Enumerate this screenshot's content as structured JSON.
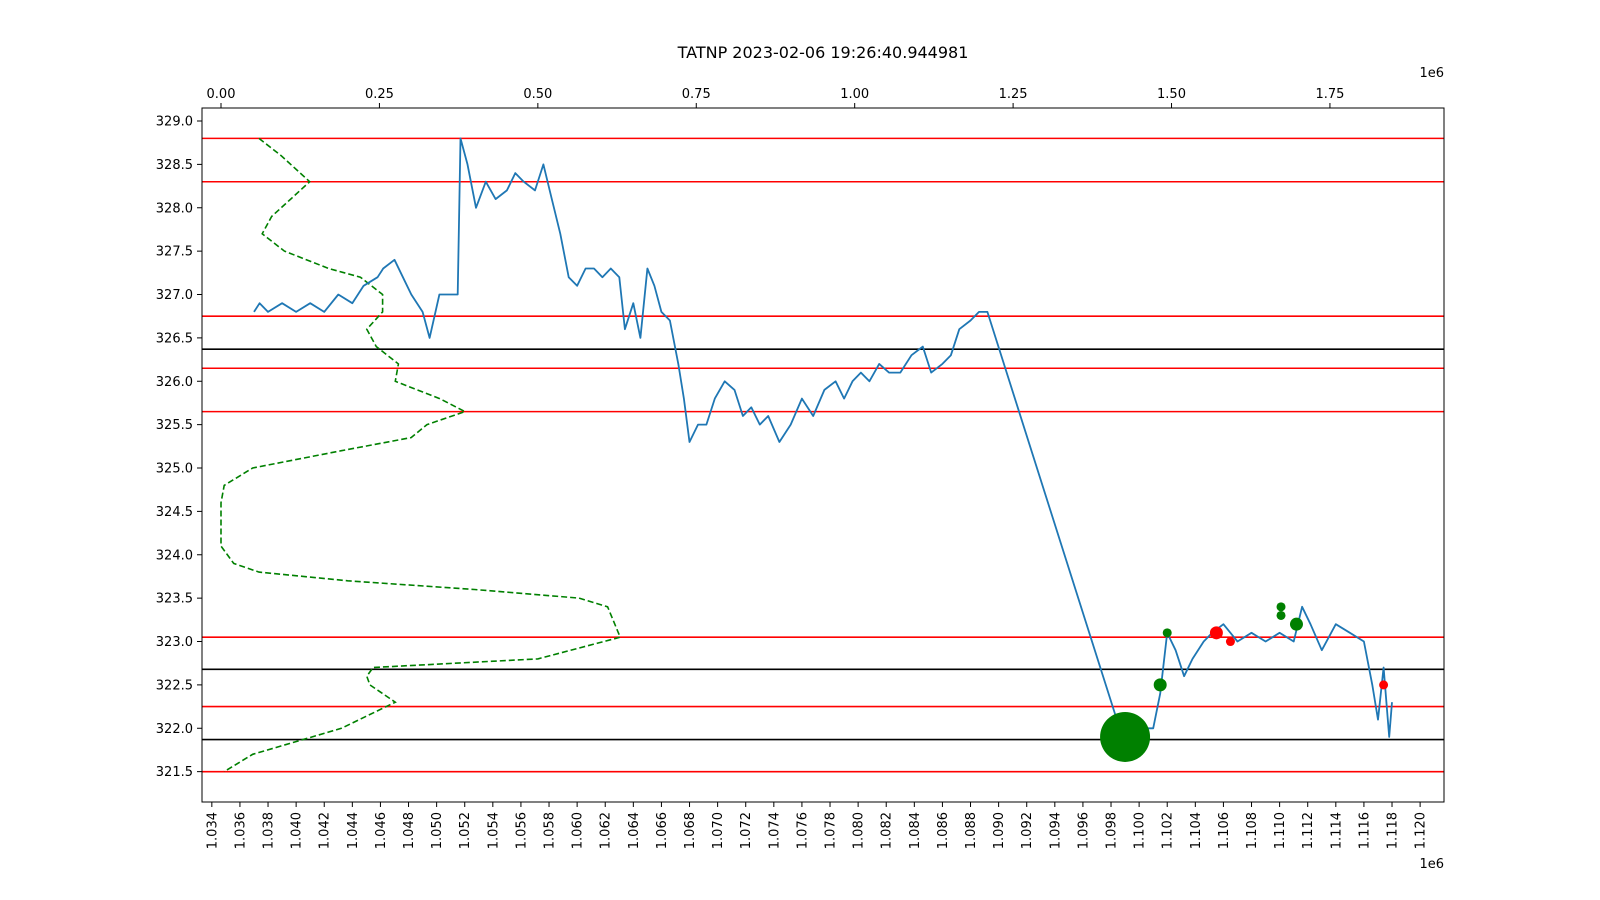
{
  "chart_data": {
    "type": "line",
    "title": "TATNP 2023-02-06 19:26:40.944981",
    "top_axis": {
      "range": [
        -0.03,
        1.93
      ],
      "ticks": [
        0.0,
        0.25,
        0.5,
        0.75,
        1.0,
        1.25,
        1.5,
        1.75
      ],
      "tick_labels": [
        "0.00",
        "0.25",
        "0.50",
        "0.75",
        "1.00",
        "1.25",
        "1.50",
        "1.75"
      ],
      "offset_label": "1e6"
    },
    "bottom_axis": {
      "range": [
        1.0333,
        1.1217
      ],
      "ticks": [
        1.034,
        1.036,
        1.038,
        1.04,
        1.042,
        1.044,
        1.046,
        1.048,
        1.05,
        1.052,
        1.054,
        1.056,
        1.058,
        1.06,
        1.062,
        1.064,
        1.066,
        1.068,
        1.07,
        1.072,
        1.074,
        1.076,
        1.078,
        1.08,
        1.082,
        1.084,
        1.086,
        1.088,
        1.09,
        1.092,
        1.094,
        1.096,
        1.098,
        1.1,
        1.102,
        1.104,
        1.106,
        1.108,
        1.11,
        1.112,
        1.114,
        1.116,
        1.118,
        1.12
      ],
      "tick_labels": [
        "1.034",
        "1.036",
        "1.038",
        "1.040",
        "1.042",
        "1.044",
        "1.046",
        "1.048",
        "1.050",
        "1.052",
        "1.054",
        "1.056",
        "1.058",
        "1.060",
        "1.062",
        "1.064",
        "1.066",
        "1.068",
        "1.070",
        "1.072",
        "1.074",
        "1.076",
        "1.078",
        "1.080",
        "1.082",
        "1.084",
        "1.086",
        "1.088",
        "1.090",
        "1.092",
        "1.094",
        "1.096",
        "1.098",
        "1.100",
        "1.102",
        "1.104",
        "1.106",
        "1.108",
        "1.110",
        "1.112",
        "1.114",
        "1.116",
        "1.118",
        "1.120"
      ],
      "offset_label": "1e6"
    },
    "y_axis": {
      "range": [
        321.15,
        329.15
      ],
      "ticks": [
        321.5,
        322.0,
        322.5,
        323.0,
        323.5,
        324.0,
        324.5,
        325.0,
        325.5,
        326.0,
        326.5,
        327.0,
        327.5,
        328.0,
        328.5,
        329.0
      ],
      "tick_labels": [
        "321.5",
        "322.0",
        "322.5",
        "323.0",
        "323.5",
        "324.0",
        "324.5",
        "325.0",
        "325.5",
        "326.0",
        "326.5",
        "327.0",
        "327.5",
        "328.0",
        "328.5",
        "329.0"
      ]
    },
    "grid": false,
    "price_series": {
      "color": "#1f77b4",
      "axis": "bottom",
      "points": [
        [
          1.037,
          326.8
        ],
        [
          1.0374,
          326.9
        ],
        [
          1.038,
          326.8
        ],
        [
          1.039,
          326.9
        ],
        [
          1.04,
          326.8
        ],
        [
          1.041,
          326.9
        ],
        [
          1.042,
          326.8
        ],
        [
          1.043,
          327.0
        ],
        [
          1.044,
          326.9
        ],
        [
          1.0448,
          327.1
        ],
        [
          1.0458,
          327.2
        ],
        [
          1.0462,
          327.3
        ],
        [
          1.047,
          327.4
        ],
        [
          1.0476,
          327.2
        ],
        [
          1.0482,
          327.0
        ],
        [
          1.049,
          326.8
        ],
        [
          1.0495,
          326.5
        ],
        [
          1.0502,
          327.0
        ],
        [
          1.051,
          327.0
        ],
        [
          1.0515,
          327.0
        ],
        [
          1.0517,
          328.8
        ],
        [
          1.0522,
          328.5
        ],
        [
          1.0528,
          328.0
        ],
        [
          1.0535,
          328.3
        ],
        [
          1.0542,
          328.1
        ],
        [
          1.055,
          328.2
        ],
        [
          1.0556,
          328.4
        ],
        [
          1.0562,
          328.3
        ],
        [
          1.057,
          328.2
        ],
        [
          1.0576,
          328.5
        ],
        [
          1.0582,
          328.1
        ],
        [
          1.0588,
          327.7
        ],
        [
          1.0594,
          327.2
        ],
        [
          1.06,
          327.1
        ],
        [
          1.0606,
          327.3
        ],
        [
          1.0612,
          327.3
        ],
        [
          1.0618,
          327.2
        ],
        [
          1.0624,
          327.3
        ],
        [
          1.063,
          327.2
        ],
        [
          1.0634,
          326.6
        ],
        [
          1.064,
          326.9
        ],
        [
          1.0645,
          326.5
        ],
        [
          1.065,
          327.3
        ],
        [
          1.0655,
          327.1
        ],
        [
          1.066,
          326.8
        ],
        [
          1.0666,
          326.7
        ],
        [
          1.0672,
          326.2
        ],
        [
          1.0676,
          325.8
        ],
        [
          1.068,
          325.3
        ],
        [
          1.0686,
          325.5
        ],
        [
          1.0692,
          325.5
        ],
        [
          1.0698,
          325.8
        ],
        [
          1.0705,
          326.0
        ],
        [
          1.0712,
          325.9
        ],
        [
          1.0718,
          325.6
        ],
        [
          1.0724,
          325.7
        ],
        [
          1.073,
          325.5
        ],
        [
          1.0736,
          325.6
        ],
        [
          1.0744,
          325.3
        ],
        [
          1.0752,
          325.5
        ],
        [
          1.076,
          325.8
        ],
        [
          1.0768,
          325.6
        ],
        [
          1.0776,
          325.9
        ],
        [
          1.0784,
          326.0
        ],
        [
          1.079,
          325.8
        ],
        [
          1.0796,
          326.0
        ],
        [
          1.0802,
          326.1
        ],
        [
          1.0808,
          326.0
        ],
        [
          1.0815,
          326.2
        ],
        [
          1.0822,
          326.1
        ],
        [
          1.083,
          326.1
        ],
        [
          1.0838,
          326.3
        ],
        [
          1.0846,
          326.4
        ],
        [
          1.0852,
          326.1
        ],
        [
          1.086,
          326.2
        ],
        [
          1.0866,
          326.3
        ],
        [
          1.0872,
          326.6
        ],
        [
          1.088,
          326.7
        ],
        [
          1.0886,
          326.8
        ],
        [
          1.0892,
          326.8
        ],
        [
          1.0988,
          321.9
        ],
        [
          1.099,
          321.9
        ],
        [
          1.0994,
          322.0
        ],
        [
          1.101,
          322.0
        ],
        [
          1.1015,
          322.4
        ],
        [
          1.102,
          323.1
        ],
        [
          1.1026,
          322.9
        ],
        [
          1.1032,
          322.6
        ],
        [
          1.1038,
          322.8
        ],
        [
          1.1046,
          323.0
        ],
        [
          1.1052,
          323.1
        ],
        [
          1.106,
          323.2
        ],
        [
          1.107,
          323.0
        ],
        [
          1.108,
          323.1
        ],
        [
          1.109,
          323.0
        ],
        [
          1.11,
          323.1
        ],
        [
          1.111,
          323.0
        ],
        [
          1.1116,
          323.4
        ],
        [
          1.1122,
          323.2
        ],
        [
          1.113,
          322.9
        ],
        [
          1.114,
          323.2
        ],
        [
          1.115,
          323.1
        ],
        [
          1.116,
          323.0
        ],
        [
          1.1166,
          322.5
        ],
        [
          1.117,
          322.1
        ],
        [
          1.1174,
          322.7
        ],
        [
          1.1178,
          321.9
        ],
        [
          1.118,
          322.3
        ]
      ]
    },
    "volume_profile": {
      "color": "#008000",
      "style": "dashed",
      "axis": "top",
      "points": [
        [
          60000,
          328.8
        ],
        [
          95000,
          328.6
        ],
        [
          140000,
          328.3
        ],
        [
          110000,
          328.1
        ],
        [
          80000,
          327.9
        ],
        [
          65000,
          327.7
        ],
        [
          100000,
          327.5
        ],
        [
          170000,
          327.3
        ],
        [
          220000,
          327.2
        ],
        [
          255000,
          327.0
        ],
        [
          255000,
          326.8
        ],
        [
          230000,
          326.6
        ],
        [
          245000,
          326.4
        ],
        [
          280000,
          326.2
        ],
        [
          275000,
          326.0
        ],
        [
          345000,
          325.8
        ],
        [
          385000,
          325.65
        ],
        [
          325000,
          325.5
        ],
        [
          300000,
          325.35
        ],
        [
          190000,
          325.2
        ],
        [
          50000,
          325.0
        ],
        [
          5000,
          324.8
        ],
        [
          0,
          324.6
        ],
        [
          0,
          324.2
        ],
        [
          0,
          324.1
        ],
        [
          20000,
          323.9
        ],
        [
          60000,
          323.8
        ],
        [
          200000,
          323.7
        ],
        [
          400000,
          323.6
        ],
        [
          565000,
          323.5
        ],
        [
          610000,
          323.4
        ],
        [
          630000,
          323.05
        ],
        [
          500000,
          322.8
        ],
        [
          240000,
          322.7
        ],
        [
          230000,
          322.6
        ],
        [
          235000,
          322.5
        ],
        [
          275000,
          322.3
        ],
        [
          190000,
          322.0
        ],
        [
          50000,
          321.7
        ],
        [
          5000,
          321.5
        ]
      ]
    },
    "levels": {
      "red": [
        328.8,
        328.3,
        326.75,
        326.15,
        325.65,
        323.05,
        322.25,
        321.5
      ],
      "black": [
        326.37,
        322.68,
        321.87
      ]
    },
    "markers": [
      {
        "x": 1.099,
        "y": 321.9,
        "color": "#008000",
        "size": "large"
      },
      {
        "x": 1.1015,
        "y": 322.5,
        "color": "#008000",
        "size": "small"
      },
      {
        "x": 1.102,
        "y": 323.1,
        "color": "#008000",
        "size": "tiny"
      },
      {
        "x": 1.1055,
        "y": 323.1,
        "color": "#ff0000",
        "size": "small"
      },
      {
        "x": 1.1065,
        "y": 323.0,
        "color": "#ff0000",
        "size": "tiny"
      },
      {
        "x": 1.1101,
        "y": 323.4,
        "color": "#008000",
        "size": "tiny"
      },
      {
        "x": 1.1101,
        "y": 323.3,
        "color": "#008000",
        "size": "tiny"
      },
      {
        "x": 1.1112,
        "y": 323.2,
        "color": "#008000",
        "size": "small"
      },
      {
        "x": 1.1174,
        "y": 322.5,
        "color": "#ff0000",
        "size": "tiny"
      }
    ]
  }
}
